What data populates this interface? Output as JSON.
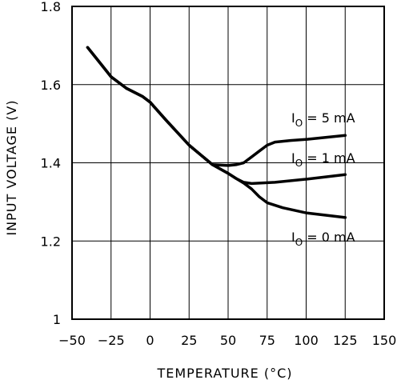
{
  "chart_data": {
    "type": "line",
    "xlabel": "TEMPERATURE (°C)",
    "ylabel": "INPUT VOLTAGE (V)",
    "xlim": [
      -50,
      150
    ],
    "ylim": [
      1.0,
      1.8
    ],
    "xticks": [
      "−50",
      "−25",
      "0",
      "25",
      "50",
      "75",
      "100",
      "125",
      "150"
    ],
    "yticks": [
      "1",
      "1.2",
      "1.4",
      "1.6",
      "1.8"
    ],
    "grid": true,
    "series": [
      {
        "name": "I0 = 5 mA",
        "label_main": "I",
        "label_sub": "O",
        "label_rest": " = 5 mA",
        "x": [
          -40,
          -25,
          -15,
          -5,
          0,
          10,
          25,
          40,
          50,
          55,
          60,
          65,
          70,
          75,
          80,
          90,
          100,
          110,
          125
        ],
        "y": [
          1.695,
          1.62,
          1.59,
          1.57,
          1.555,
          1.51,
          1.445,
          1.395,
          1.393,
          1.395,
          1.4,
          1.415,
          1.43,
          1.445,
          1.453,
          1.457,
          1.46,
          1.464,
          1.47
        ]
      },
      {
        "name": "I0 = 1 mA",
        "label_main": "I",
        "label_sub": "O",
        "label_rest": " = 1 mA",
        "x": [
          -40,
          -25,
          -15,
          -5,
          0,
          10,
          25,
          40,
          50,
          55,
          60,
          65,
          70,
          80,
          100,
          125
        ],
        "y": [
          1.695,
          1.62,
          1.59,
          1.57,
          1.555,
          1.51,
          1.445,
          1.395,
          1.373,
          1.36,
          1.35,
          1.347,
          1.348,
          1.35,
          1.358,
          1.37
        ]
      },
      {
        "name": "I0 = 0 mA",
        "label_main": "I",
        "label_sub": "O",
        "label_rest": " = 0 mA",
        "x": [
          -40,
          -25,
          -15,
          -5,
          0,
          10,
          25,
          40,
          50,
          55,
          60,
          65,
          70,
          75,
          85,
          100,
          125
        ],
        "y": [
          1.695,
          1.62,
          1.59,
          1.57,
          1.555,
          1.51,
          1.445,
          1.395,
          1.373,
          1.36,
          1.348,
          1.333,
          1.313,
          1.298,
          1.285,
          1.272,
          1.26
        ]
      }
    ]
  }
}
